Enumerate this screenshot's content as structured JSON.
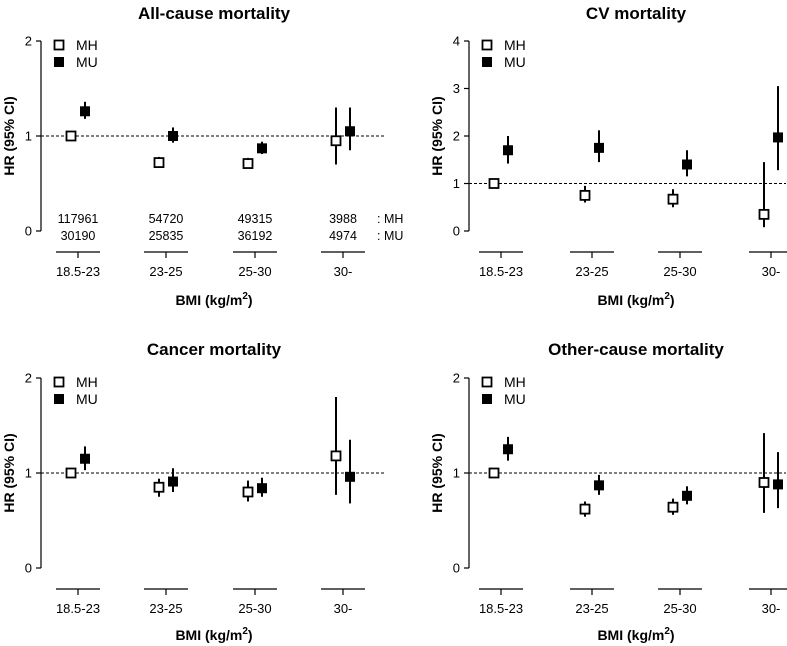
{
  "chart_data": [
    {
      "type": "scatter",
      "title": "All-cause mortality",
      "xlabel": "BMI (kg/m",
      "xlabel_sup": "2",
      "xlabel_close": ")",
      "ylabel": "HR (95% CI)",
      "categories": [
        "18.5-23",
        "23-25",
        "25-30",
        "30-"
      ],
      "ylim": [
        0,
        2
      ],
      "yticks": [
        0,
        1,
        2
      ],
      "reference_line": 1,
      "legend_position": "top-left",
      "series": [
        {
          "name": "MH",
          "marker": "open-square",
          "values": [
            1.0,
            0.72,
            0.71,
            0.95
          ],
          "lower": [
            1.0,
            0.67,
            0.66,
            0.7
          ],
          "upper": [
            1.0,
            0.78,
            0.77,
            1.3
          ]
        },
        {
          "name": "MU",
          "marker": "filled-square",
          "values": [
            1.26,
            1.0,
            0.87,
            1.05
          ],
          "lower": [
            1.18,
            0.93,
            0.81,
            0.85
          ],
          "upper": [
            1.36,
            1.09,
            0.94,
            1.3
          ]
        }
      ],
      "counts": [
        {
          "label": ": MH",
          "values": [
            "117961",
            "54720",
            "49315",
            "3988"
          ]
        },
        {
          "label": ": MU",
          "values": [
            "30190",
            "25835",
            "36192",
            "4974"
          ]
        }
      ]
    },
    {
      "type": "scatter",
      "title": "CV mortality",
      "xlabel": "BMI (kg/m",
      "xlabel_sup": "2",
      "xlabel_close": ")",
      "ylabel": "HR (95% CI)",
      "categories": [
        "18.5-23",
        "23-25",
        "25-30",
        "30-"
      ],
      "ylim": [
        0,
        4
      ],
      "yticks": [
        0,
        1,
        2,
        3,
        4
      ],
      "reference_line": 1,
      "legend_position": "top-left",
      "series": [
        {
          "name": "MH",
          "marker": "open-square",
          "values": [
            1.0,
            0.75,
            0.67,
            0.35
          ],
          "lower": [
            1.0,
            0.6,
            0.5,
            0.08
          ],
          "upper": [
            1.0,
            0.95,
            0.88,
            1.45
          ]
        },
        {
          "name": "MU",
          "marker": "filled-square",
          "values": [
            1.7,
            1.75,
            1.4,
            1.97
          ],
          "lower": [
            1.42,
            1.45,
            1.15,
            1.28
          ],
          "upper": [
            2.0,
            2.12,
            1.7,
            3.05
          ]
        }
      ]
    },
    {
      "type": "scatter",
      "title": "Cancer mortality",
      "xlabel": "BMI (kg/m",
      "xlabel_sup": "2",
      "xlabel_close": ")",
      "ylabel": "HR (95% CI)",
      "categories": [
        "18.5-23",
        "23-25",
        "25-30",
        "30-"
      ],
      "ylim": [
        0,
        2
      ],
      "yticks": [
        0,
        1,
        2
      ],
      "reference_line": 1,
      "legend_position": "top-left",
      "series": [
        {
          "name": "MH",
          "marker": "open-square",
          "values": [
            1.0,
            0.85,
            0.8,
            1.18
          ],
          "lower": [
            1.0,
            0.75,
            0.7,
            0.77
          ],
          "upper": [
            1.0,
            0.94,
            0.92,
            1.8
          ]
        },
        {
          "name": "MU",
          "marker": "filled-square",
          "values": [
            1.15,
            0.91,
            0.84,
            0.96
          ],
          "lower": [
            1.03,
            0.8,
            0.75,
            0.68
          ],
          "upper": [
            1.28,
            1.05,
            0.95,
            1.35
          ]
        }
      ]
    },
    {
      "type": "scatter",
      "title": "Other-cause mortality",
      "xlabel": "BMI (kg/m",
      "xlabel_sup": "2",
      "xlabel_close": ")",
      "ylabel": "HR (95% CI)",
      "categories": [
        "18.5-23",
        "23-25",
        "25-30",
        "30-"
      ],
      "ylim": [
        0,
        2
      ],
      "yticks": [
        0,
        1,
        2
      ],
      "reference_line": 1,
      "legend_position": "top-left",
      "series": [
        {
          "name": "MH",
          "marker": "open-square",
          "values": [
            1.0,
            0.62,
            0.64,
            0.9
          ],
          "lower": [
            1.0,
            0.54,
            0.56,
            0.58
          ],
          "upper": [
            1.0,
            0.7,
            0.73,
            1.42
          ]
        },
        {
          "name": "MU",
          "marker": "filled-square",
          "values": [
            1.25,
            0.87,
            0.76,
            0.88
          ],
          "lower": [
            1.13,
            0.77,
            0.67,
            0.63
          ],
          "upper": [
            1.38,
            0.98,
            0.86,
            1.22
          ]
        }
      ]
    }
  ]
}
